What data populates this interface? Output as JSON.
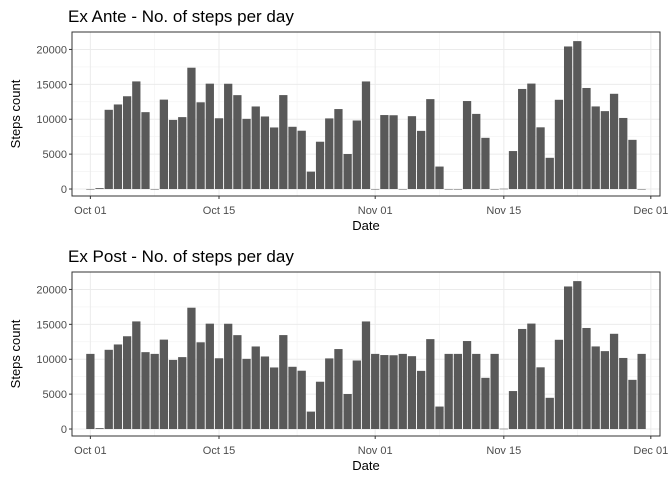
{
  "chart_data": [
    {
      "type": "bar",
      "title": "Ex Ante - No. of steps per day",
      "xlabel": "Date",
      "ylabel": "Steps count",
      "x": [
        "2012-10-01",
        "2012-10-02",
        "2012-10-03",
        "2012-10-04",
        "2012-10-05",
        "2012-10-06",
        "2012-10-07",
        "2012-10-08",
        "2012-10-09",
        "2012-10-10",
        "2012-10-11",
        "2012-10-12",
        "2012-10-13",
        "2012-10-14",
        "2012-10-15",
        "2012-10-16",
        "2012-10-17",
        "2012-10-18",
        "2012-10-19",
        "2012-10-20",
        "2012-10-21",
        "2012-10-22",
        "2012-10-23",
        "2012-10-24",
        "2012-10-25",
        "2012-10-26",
        "2012-10-27",
        "2012-10-28",
        "2012-10-29",
        "2012-10-30",
        "2012-10-31",
        "2012-11-01",
        "2012-11-02",
        "2012-11-03",
        "2012-11-04",
        "2012-11-05",
        "2012-11-06",
        "2012-11-07",
        "2012-11-08",
        "2012-11-09",
        "2012-11-10",
        "2012-11-11",
        "2012-11-12",
        "2012-11-13",
        "2012-11-14",
        "2012-11-15",
        "2012-11-16",
        "2012-11-17",
        "2012-11-18",
        "2012-11-19",
        "2012-11-20",
        "2012-11-21",
        "2012-11-22",
        "2012-11-23",
        "2012-11-24",
        "2012-11-25",
        "2012-11-26",
        "2012-11-27",
        "2012-11-28",
        "2012-11-29",
        "2012-11-30"
      ],
      "values": [
        0,
        126,
        11352,
        12116,
        13294,
        15420,
        11015,
        0,
        12811,
        9900,
        10304,
        17382,
        12426,
        15098,
        10139,
        15084,
        13452,
        10056,
        11829,
        10395,
        8821,
        13460,
        8918,
        8355,
        2492,
        6778,
        10119,
        11458,
        5018,
        9819,
        15414,
        0,
        10600,
        10571,
        0,
        10439,
        8334,
        12883,
        3219,
        0,
        0,
        12608,
        10765,
        7336,
        0,
        41,
        5441,
        14339,
        15110,
        8841,
        4472,
        12787,
        20427,
        21194,
        14478,
        11834,
        11162,
        13646,
        10183,
        7047,
        0
      ],
      "xlim": [
        "2012-09-29",
        "2012-12-02"
      ],
      "ylim": [
        -1000,
        22500
      ],
      "xticks": [
        "2012-10-01",
        "2012-10-15",
        "2012-11-01",
        "2012-11-15",
        "2012-12-01"
      ],
      "xtick_labels": [
        "Oct 01",
        "Oct 15",
        "Nov 01",
        "Nov 15",
        "Dec 01"
      ],
      "yticks": [
        0,
        5000,
        10000,
        15000,
        20000
      ],
      "ytick_labels": [
        "0",
        "5000",
        "10000",
        "15000",
        "20000"
      ],
      "bar_color": "#595959",
      "grid": true
    },
    {
      "type": "bar",
      "title": "Ex Post - No. of steps per day",
      "xlabel": "Date",
      "ylabel": "Steps count",
      "x": [
        "2012-10-01",
        "2012-10-02",
        "2012-10-03",
        "2012-10-04",
        "2012-10-05",
        "2012-10-06",
        "2012-10-07",
        "2012-10-08",
        "2012-10-09",
        "2012-10-10",
        "2012-10-11",
        "2012-10-12",
        "2012-10-13",
        "2012-10-14",
        "2012-10-15",
        "2012-10-16",
        "2012-10-17",
        "2012-10-18",
        "2012-10-19",
        "2012-10-20",
        "2012-10-21",
        "2012-10-22",
        "2012-10-23",
        "2012-10-24",
        "2012-10-25",
        "2012-10-26",
        "2012-10-27",
        "2012-10-28",
        "2012-10-29",
        "2012-10-30",
        "2012-10-31",
        "2012-11-01",
        "2012-11-02",
        "2012-11-03",
        "2012-11-04",
        "2012-11-05",
        "2012-11-06",
        "2012-11-07",
        "2012-11-08",
        "2012-11-09",
        "2012-11-10",
        "2012-11-11",
        "2012-11-12",
        "2012-11-13",
        "2012-11-14",
        "2012-11-15",
        "2012-11-16",
        "2012-11-17",
        "2012-11-18",
        "2012-11-19",
        "2012-11-20",
        "2012-11-21",
        "2012-11-22",
        "2012-11-23",
        "2012-11-24",
        "2012-11-25",
        "2012-11-26",
        "2012-11-27",
        "2012-11-28",
        "2012-11-29",
        "2012-11-30"
      ],
      "values": [
        10766,
        126,
        11352,
        12116,
        13294,
        15420,
        11015,
        10766,
        12811,
        9900,
        10304,
        17382,
        12426,
        15098,
        10139,
        15084,
        13452,
        10056,
        11829,
        10395,
        8821,
        13460,
        8918,
        8355,
        2492,
        6778,
        10119,
        11458,
        5018,
        9819,
        15414,
        10766,
        10600,
        10571,
        10766,
        10439,
        8334,
        12883,
        3219,
        10766,
        10766,
        12608,
        10765,
        7336,
        10766,
        41,
        5441,
        14339,
        15110,
        8841,
        4472,
        12787,
        20427,
        21194,
        14478,
        11834,
        11162,
        13646,
        10183,
        7047,
        10766
      ],
      "xlim": [
        "2012-09-29",
        "2012-12-02"
      ],
      "ylim": [
        -1000,
        22500
      ],
      "xticks": [
        "2012-10-01",
        "2012-10-15",
        "2012-11-01",
        "2012-11-15",
        "2012-12-01"
      ],
      "xtick_labels": [
        "Oct 01",
        "Oct 15",
        "Nov 01",
        "Nov 15",
        "Dec 01"
      ],
      "yticks": [
        0,
        5000,
        10000,
        15000,
        20000
      ],
      "ytick_labels": [
        "0",
        "5000",
        "10000",
        "15000",
        "20000"
      ],
      "bar_color": "#595959",
      "grid": true
    }
  ]
}
